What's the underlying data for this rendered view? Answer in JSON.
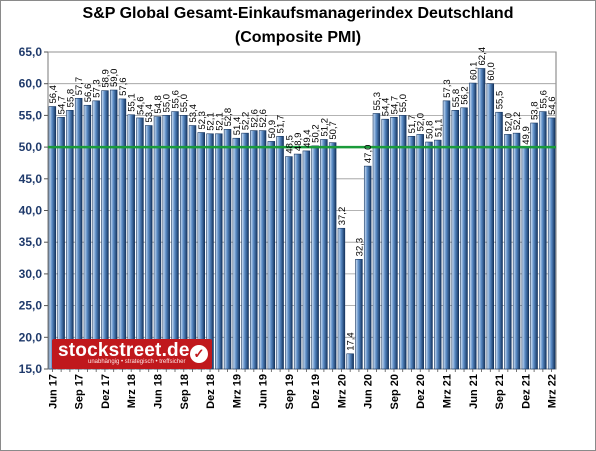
{
  "title": "S&P Global Gesamt-Einkaufsmanagerindex Deutschland",
  "subtitle": "(Composite PMI)",
  "logo": {
    "text": "stockstreet.de",
    "tagline": "unabhängig • strategisch • treffsicher",
    "check_icon": "check-icon"
  },
  "colors": {
    "bar_light": "#d7e6f7",
    "bar_mid": "#5b8cc6",
    "bar_dark": "#14345f",
    "threshold_line": "#1a9b3a",
    "axis_text": "#1f3a6b",
    "grid": "#9a9a9a",
    "plot_background": "#ffffff"
  },
  "chart_data": {
    "type": "bar",
    "ylim": [
      15,
      65
    ],
    "yticks": [
      "15,0",
      "20,0",
      "25,0",
      "30,0",
      "35,0",
      "40,0",
      "45,0",
      "50,0",
      "55,0",
      "60,0",
      "65,0"
    ],
    "grid": true,
    "threshold": 50,
    "categories": [
      "Jun 17",
      "Jul 17",
      "Aug 17",
      "Sep 17",
      "Okt 17",
      "Nov 17",
      "Dez 17",
      "Jan 18",
      "Feb 18",
      "Mrz 18",
      "Apr 18",
      "Mai 18",
      "Jun 18",
      "Jul 18",
      "Aug 18",
      "Sep 18",
      "Okt 18",
      "Nov 18",
      "Dez 18",
      "Jan 19",
      "Feb 19",
      "Mrz 19",
      "Apr 19",
      "Mai 19",
      "Jun 19",
      "Jul 19",
      "Aug 19",
      "Sep 19",
      "Okt 19",
      "Nov 19",
      "Dez 19",
      "Jan 20",
      "Feb 20",
      "Mrz 20",
      "Apr 20",
      "Mai 20",
      "Jun 20",
      "Jul 20",
      "Aug 20",
      "Sep 20",
      "Okt 20",
      "Nov 20",
      "Dez 20",
      "Jan 21",
      "Feb 21",
      "Mrz 21",
      "Apr 21",
      "Mai 21",
      "Jun 21",
      "Jul 21",
      "Aug 21",
      "Sep 21",
      "Okt 21",
      "Nov 21",
      "Dez 21",
      "Jan 22",
      "Feb 22",
      "Mrz 22"
    ],
    "values": [
      56.4,
      54.7,
      55.8,
      57.7,
      56.6,
      57.3,
      58.9,
      59.0,
      57.6,
      55.1,
      54.6,
      53.4,
      54.8,
      55.0,
      55.6,
      55.0,
      53.4,
      52.3,
      52.1,
      52.1,
      52.8,
      51.4,
      52.2,
      52.6,
      52.6,
      50.9,
      51.7,
      48.5,
      48.9,
      49.4,
      50.2,
      51.2,
      50.7,
      37.2,
      17.4,
      32.3,
      47.0,
      55.3,
      54.4,
      54.7,
      55.0,
      51.7,
      52.0,
      50.8,
      51.1,
      57.3,
      55.8,
      56.2,
      60.1,
      62.4,
      60.0,
      55.5,
      52.0,
      52.2,
      49.9,
      53.8,
      55.6,
      54.6
    ],
    "value_labels": [
      "56,4",
      "54,7",
      "55,8",
      "57,7",
      "56,6",
      "57,3",
      "58,9",
      "59,0",
      "57,6",
      "55,1",
      "54,6",
      "53,4",
      "54,8",
      "55,0",
      "55,6",
      "55,0",
      "53,4",
      "52,3",
      "52,1",
      "52,1",
      "52,8",
      "51,4",
      "52,2",
      "52,6",
      "52,6",
      "50,9",
      "51,7",
      "48,5",
      "48,9",
      "49,4",
      "50,2",
      "51,2",
      "50,7",
      "37,2",
      "17,4",
      "32,3",
      "47,0",
      "55,3",
      "54,4",
      "54,7",
      "55,0",
      "51,7",
      "52,0",
      "50,8",
      "51,1",
      "57,3",
      "55,8",
      "56,2",
      "60,1",
      "62,4",
      "60,0",
      "55,5",
      "52,0",
      "52,2",
      "49,9",
      "53,8",
      "55,6",
      "54,6"
    ],
    "visible_category_labels": [
      "Jun 17",
      "Sep 17",
      "Dez 17",
      "Mrz 18",
      "Jun 18",
      "Sep 18",
      "Dez 18",
      "Mrz 19",
      "Jun 19",
      "Sep 19",
      "Dez 19",
      "Mrz 20",
      "Jun 20",
      "Sep 20",
      "Dez 20",
      "Mrz 21",
      "Jun 21",
      "Sep 21",
      "Dez 21",
      "Mrz 22"
    ]
  }
}
